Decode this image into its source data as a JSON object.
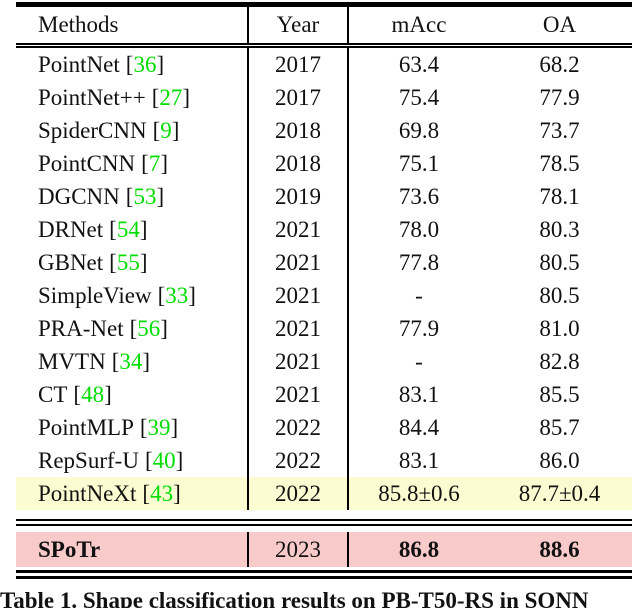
{
  "symbols": {
    "lbracket": "[",
    "rbracket": "]"
  },
  "colors": {
    "citation_green": "#00dd00",
    "highlight_yellow": "#fcfcd2",
    "highlight_pink": "#f9caca",
    "rule_black": "#000000"
  },
  "table": {
    "columns": [
      "Methods",
      "Year",
      "mAcc",
      "OA"
    ],
    "rows": [
      {
        "method": "PointNet",
        "ref": "36",
        "year": "2017",
        "macc": "63.4",
        "oa": "68.2"
      },
      {
        "method": "PointNet++",
        "ref": "27",
        "year": "2017",
        "macc": "75.4",
        "oa": "77.9"
      },
      {
        "method": "SpiderCNN",
        "ref": "9",
        "year": "2018",
        "macc": "69.8",
        "oa": "73.7"
      },
      {
        "method": "PointCNN",
        "ref": "7",
        "year": "2018",
        "macc": "75.1",
        "oa": "78.5"
      },
      {
        "method": "DGCNN",
        "ref": "53",
        "year": "2019",
        "macc": "73.6",
        "oa": "78.1"
      },
      {
        "method": "DRNet",
        "ref": "54",
        "year": "2021",
        "macc": "78.0",
        "oa": "80.3"
      },
      {
        "method": "GBNet",
        "ref": "55",
        "year": "2021",
        "macc": "77.8",
        "oa": "80.5"
      },
      {
        "method": "SimpleView",
        "ref": "33",
        "year": "2021",
        "macc": "-",
        "oa": "80.5"
      },
      {
        "method": "PRA-Net",
        "ref": "56",
        "year": "2021",
        "macc": "77.9",
        "oa": "81.0"
      },
      {
        "method": "MVTN",
        "ref": "34",
        "year": "2021",
        "macc": "-",
        "oa": "82.8"
      },
      {
        "method": "CT",
        "ref": "48",
        "year": "2021",
        "macc": "83.1",
        "oa": "85.5"
      },
      {
        "method": "PointMLP",
        "ref": "39",
        "year": "2022",
        "macc": "84.4",
        "oa": "85.7"
      },
      {
        "method": "RepSurf-U",
        "ref": "40",
        "year": "2022",
        "macc": "83.1",
        "oa": "86.0"
      },
      {
        "method": "PointNeXt",
        "ref": "43",
        "year": "2022",
        "macc": "85.8±0.6",
        "oa": "87.7±0.4",
        "highlight": "yellow"
      }
    ],
    "final_row": {
      "method": "SPoTr",
      "year": "2023",
      "macc": "86.8",
      "oa": "88.6",
      "highlight": "pink"
    }
  },
  "caption": "Table 1. Shape classification results on PB-T50-RS in SONN"
}
